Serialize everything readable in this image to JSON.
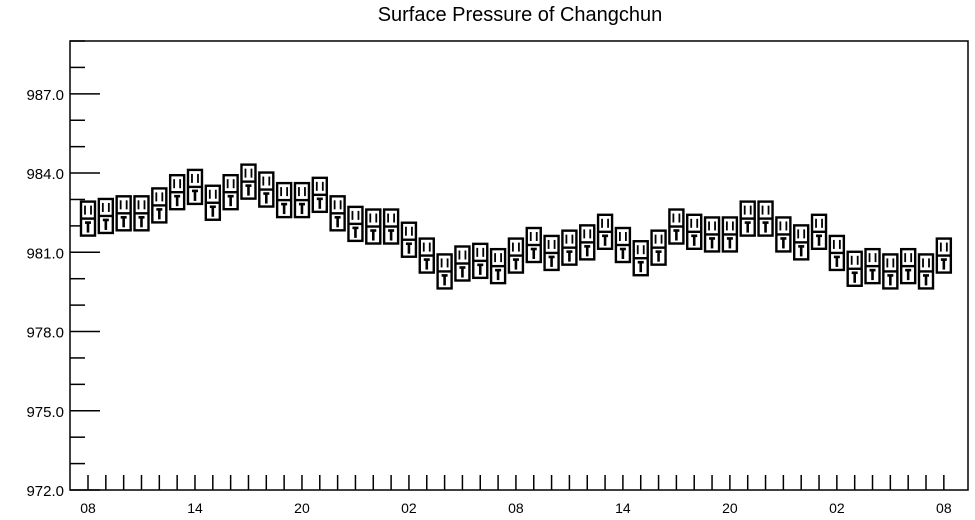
{
  "chart_data": {
    "type": "box",
    "title": "Surface Pressure of Changchun",
    "xlabel": "",
    "ylabel": "",
    "ylim": [
      972.0,
      989.0
    ],
    "yticks": [
      "972.0",
      "975.0",
      "978.0",
      "981.0",
      "984.0",
      "987.0"
    ],
    "xtick_labels": [
      "08",
      "14",
      "20",
      "02",
      "08",
      "14",
      "20",
      "02",
      "08"
    ],
    "series": [
      {
        "values": [
          982.2,
          982.3,
          982.4,
          982.4,
          982.7,
          983.2,
          983.4,
          982.8,
          983.2,
          983.6,
          983.3,
          982.9,
          982.9,
          983.1,
          982.4,
          982.0,
          981.9,
          981.9,
          981.4,
          980.8,
          980.2,
          980.5,
          980.6,
          980.4,
          980.8,
          981.2,
          980.9,
          981.1,
          981.3,
          981.7,
          981.2,
          980.7,
          981.1,
          981.9,
          981.7,
          981.6,
          981.6,
          982.2,
          982.2,
          981.6,
          981.3,
          981.7,
          980.9,
          980.3,
          980.4,
          980.2,
          980.4,
          980.2,
          980.8
        ]
      }
    ]
  }
}
